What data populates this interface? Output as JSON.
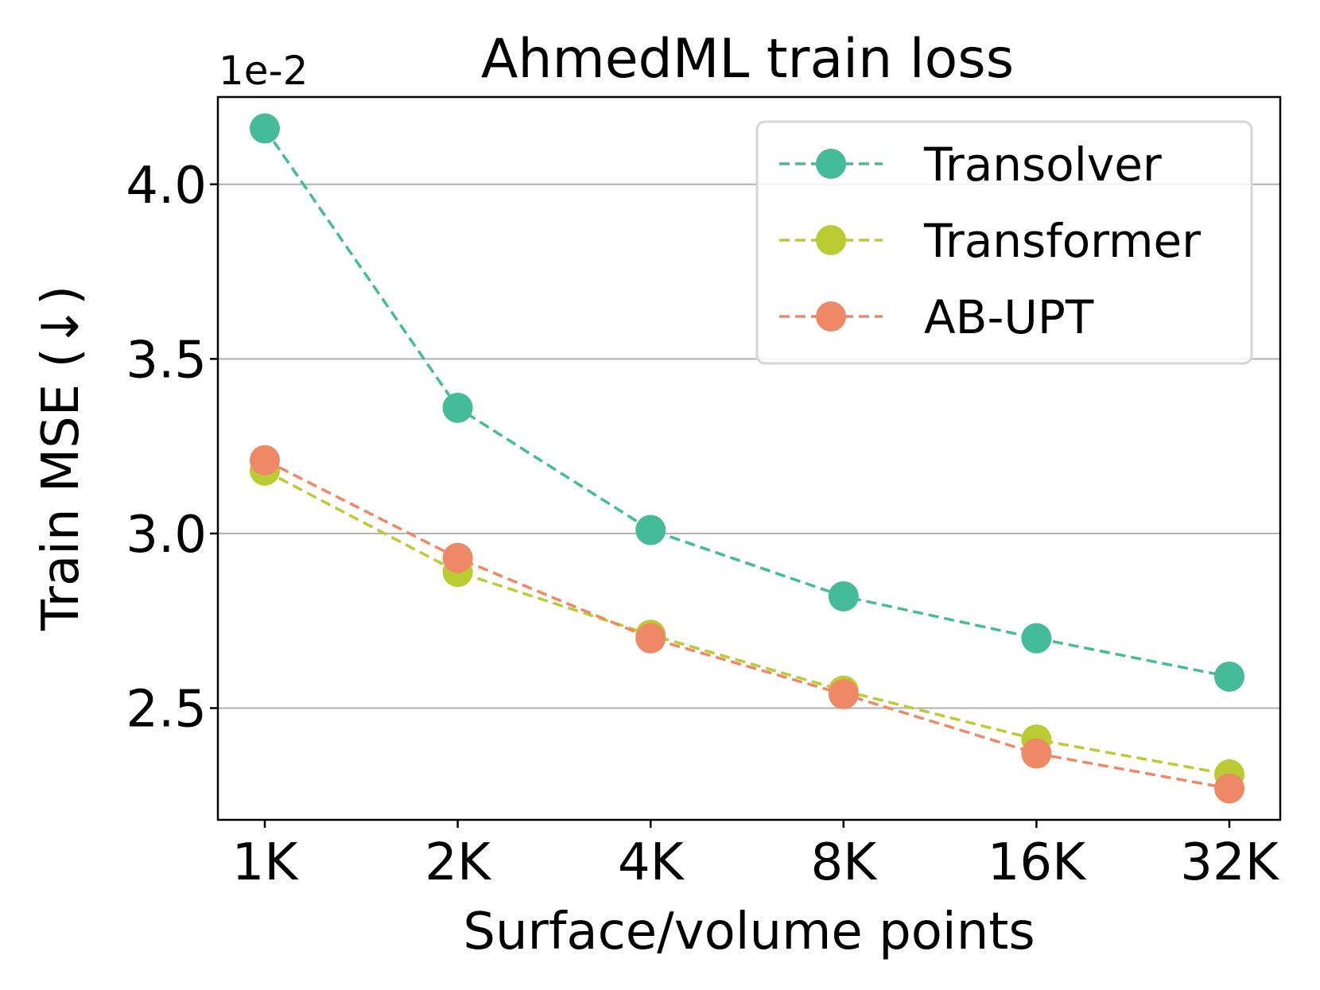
{
  "chart_data": {
    "type": "line",
    "title": "AhmedML train loss",
    "xlabel": "Surface/volume points",
    "ylabel": "Train MSE (↓)",
    "y_offset_label": "1e-2",
    "categories": [
      "1K",
      "2K",
      "4K",
      "8K",
      "16K",
      "32K"
    ],
    "ylim": [
      2.18,
      4.25
    ],
    "yticks": [
      2.5,
      3.0,
      3.5,
      4.0
    ],
    "ytick_labels": [
      "2.5",
      "3.0",
      "3.5",
      "4.0"
    ],
    "grid": "horizontal",
    "legend_position": "top-right",
    "series": [
      {
        "name": "Transolver",
        "color": "#44bb99",
        "values": [
          4.16,
          3.36,
          3.01,
          2.82,
          2.7,
          2.59
        ]
      },
      {
        "name": "Transformer",
        "color": "#bbcc33",
        "values": [
          3.18,
          2.89,
          2.71,
          2.55,
          2.41,
          2.31
        ]
      },
      {
        "name": "AB-UPT",
        "color": "#ee8866",
        "values": [
          3.21,
          2.93,
          2.7,
          2.54,
          2.37,
          2.27
        ]
      }
    ]
  }
}
